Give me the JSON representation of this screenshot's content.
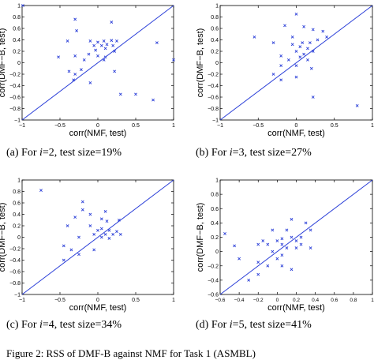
{
  "colors": {
    "line": "#2b3fd8",
    "marker": "#2b3fd8",
    "axis": "#000000"
  },
  "captions": [
    {
      "prefix": "(a)  For ",
      "var": "i",
      "suffix": "=2,  test  size=19%"
    },
    {
      "prefix": "(b)  For ",
      "var": "i",
      "suffix": "=3,  test  size=27%"
    },
    {
      "prefix": "(c)  For ",
      "var": "i",
      "suffix": "=4,  test  size=34%"
    },
    {
      "prefix": "(d)  For ",
      "var": "i",
      "suffix": "=5,  test  size=41%"
    }
  ],
  "figure_caption": "Figure 2: RSS of DMF-B against NMF for Task 1 (ASMBL)",
  "chart_data": [
    {
      "type": "scatter",
      "xlabel": "corr(NMF, test)",
      "ylabel": "corr(DMF−B, test)",
      "xlim": [
        -1,
        1
      ],
      "ylim": [
        -1,
        1
      ],
      "xticks": [
        -1,
        -0.5,
        0,
        0.5,
        1
      ],
      "xtick_labels": [
        "−1",
        "−0.5",
        "0",
        "0.5",
        "1"
      ],
      "yticks": [
        -1,
        -0.8,
        -0.6,
        -0.4,
        -0.2,
        0,
        0.2,
        0.4,
        0.6,
        0.8,
        1
      ],
      "ytick_labels": [
        "−1",
        "−0.8",
        "−0.6",
        "−0.4",
        "−0.2",
        "0",
        "0.2",
        "0.4",
        "0.6",
        "0.8",
        "1"
      ],
      "diagonal": [
        [
          -1,
          -1
        ],
        [
          1,
          1
        ]
      ],
      "points": [
        [
          -0.99,
          1.0
        ],
        [
          -0.3,
          0.76
        ],
        [
          0.18,
          0.71
        ],
        [
          -0.28,
          0.56
        ],
        [
          -0.4,
          0.38
        ],
        [
          -0.1,
          0.38
        ],
        [
          0.0,
          0.36
        ],
        [
          0.08,
          0.38
        ],
        [
          0.18,
          0.39
        ],
        [
          0.25,
          0.38
        ],
        [
          -0.05,
          0.3
        ],
        [
          0.05,
          0.3
        ],
        [
          0.12,
          0.32
        ],
        [
          0.2,
          0.3
        ],
        [
          -0.03,
          0.22
        ],
        [
          0.1,
          0.25
        ],
        [
          0.22,
          0.2
        ],
        [
          -0.12,
          0.15
        ],
        [
          0.0,
          0.12
        ],
        [
          0.1,
          0.1
        ],
        [
          -0.18,
          0.05
        ],
        [
          0.08,
          0.05
        ],
        [
          -0.52,
          0.1
        ],
        [
          -0.3,
          0.12
        ],
        [
          -0.22,
          -0.12
        ],
        [
          -0.38,
          -0.15
        ],
        [
          0.22,
          -0.15
        ],
        [
          -0.32,
          -0.3
        ],
        [
          -0.1,
          -0.35
        ],
        [
          0.78,
          0.35
        ],
        [
          0.5,
          -0.55
        ],
        [
          0.73,
          -0.65
        ],
        [
          0.3,
          -0.55
        ],
        [
          -0.3,
          -0.2
        ],
        [
          1.0,
          0.05
        ]
      ]
    },
    {
      "type": "scatter",
      "xlabel": "corr(NMF, test)",
      "ylabel": "corr(DMF−B, test)",
      "xlim": [
        -1,
        1
      ],
      "ylim": [
        -1,
        1
      ],
      "xticks": [
        -1,
        -0.5,
        0,
        0.5,
        1
      ],
      "xtick_labels": [
        "−1",
        "−0.5",
        "0",
        "0.5",
        "1"
      ],
      "yticks": [
        -1,
        -0.8,
        -0.6,
        -0.4,
        -0.2,
        0,
        0.2,
        0.4,
        0.6,
        0.8,
        1
      ],
      "ytick_labels": [
        "−1",
        "−0.8",
        "−0.6",
        "−0.4",
        "−0.2",
        "0",
        "0.2",
        "0.4",
        "0.6",
        "0.8",
        "1"
      ],
      "diagonal": [
        [
          -1,
          -1
        ],
        [
          1,
          1
        ]
      ],
      "points": [
        [
          0.0,
          0.85
        ],
        [
          -0.15,
          0.65
        ],
        [
          0.1,
          0.63
        ],
        [
          -0.55,
          0.45
        ],
        [
          0.22,
          0.58
        ],
        [
          0.35,
          0.55
        ],
        [
          -0.3,
          0.35
        ],
        [
          -0.05,
          0.32
        ],
        [
          0.08,
          0.35
        ],
        [
          0.18,
          0.35
        ],
        [
          0.28,
          0.4
        ],
        [
          0.05,
          0.28
        ],
        [
          0.15,
          0.25
        ],
        [
          0.0,
          0.2
        ],
        [
          0.1,
          0.15
        ],
        [
          0.22,
          0.2
        ],
        [
          -0.2,
          0.12
        ],
        [
          0.05,
          0.1
        ],
        [
          -0.1,
          0.05
        ],
        [
          0.15,
          0.05
        ],
        [
          -0.2,
          -0.05
        ],
        [
          0.0,
          -0.05
        ],
        [
          0.2,
          -0.1
        ],
        [
          -0.3,
          -0.2
        ],
        [
          -0.2,
          -0.3
        ],
        [
          0.0,
          -0.25
        ],
        [
          0.22,
          -0.6
        ],
        [
          0.8,
          -0.75
        ],
        [
          -0.05,
          0.45
        ],
        [
          0.4,
          0.45
        ]
      ]
    },
    {
      "type": "scatter",
      "xlabel": "corr(NMF, test)",
      "ylabel": "corr(DMF−B, test)",
      "xlim": [
        -1,
        1
      ],
      "ylim": [
        -1,
        1
      ],
      "xticks": [
        -1,
        -0.5,
        0,
        0.5,
        1
      ],
      "xtick_labels": [
        "−1",
        "−0.5",
        "0",
        "0.5",
        "1"
      ],
      "yticks": [
        -1,
        -0.8,
        -0.6,
        -0.4,
        -0.2,
        0,
        0.2,
        0.4,
        0.6,
        0.8,
        1
      ],
      "ytick_labels": [
        "−1",
        "−0.8",
        "−0.6",
        "−0.4",
        "−0.2",
        "0",
        "0.2",
        "0.4",
        "0.6",
        "0.8",
        "1"
      ],
      "diagonal": [
        [
          -1,
          -1
        ],
        [
          1,
          1
        ]
      ],
      "points": [
        [
          -0.75,
          0.82
        ],
        [
          -0.2,
          0.62
        ],
        [
          -0.2,
          0.48
        ],
        [
          -0.1,
          0.4
        ],
        [
          0.05,
          0.32
        ],
        [
          0.12,
          0.28
        ],
        [
          0.28,
          0.3
        ],
        [
          -0.4,
          0.2
        ],
        [
          -0.1,
          0.2
        ],
        [
          0.05,
          0.15
        ],
        [
          0.15,
          0.12
        ],
        [
          0.25,
          0.1
        ],
        [
          -0.05,
          0.05
        ],
        [
          0.1,
          0.05
        ],
        [
          0.2,
          0.05
        ],
        [
          0.3,
          0.05
        ],
        [
          0.05,
          0.0
        ],
        [
          0.15,
          -0.02
        ],
        [
          -0.25,
          0.0
        ],
        [
          -0.45,
          -0.15
        ],
        [
          -0.35,
          -0.22
        ],
        [
          -0.25,
          -0.3
        ],
        [
          -0.05,
          -0.22
        ],
        [
          -0.45,
          -0.4
        ],
        [
          0.1,
          0.45
        ],
        [
          0.0,
          0.12
        ],
        [
          -0.3,
          0.35
        ]
      ]
    },
    {
      "type": "scatter",
      "xlabel": "corr(NMF, test)",
      "ylabel": "corr(DMF−B, test)",
      "xlim": [
        -0.6,
        1
      ],
      "ylim": [
        -0.6,
        1
      ],
      "xticks": [
        -0.6,
        -0.4,
        -0.2,
        0,
        0.2,
        0.4,
        0.6,
        0.8,
        1
      ],
      "xtick_labels": [
        "−0.6",
        "−0.4",
        "−0.2",
        "0",
        "0.2",
        "0.4",
        "0.6",
        "0.8",
        "1"
      ],
      "yticks": [
        -0.6,
        -0.4,
        -0.2,
        0,
        0.2,
        0.4,
        0.6,
        0.8,
        1
      ],
      "ytick_labels": [
        "−0.6",
        "−0.4",
        "−0.2",
        "0",
        "0.2",
        "0.4",
        "0.6",
        "0.8",
        "1"
      ],
      "diagonal": [
        [
          -0.6,
          -0.6
        ],
        [
          1,
          1
        ]
      ],
      "points": [
        [
          -0.55,
          0.25
        ],
        [
          -0.45,
          0.08
        ],
        [
          -0.4,
          -0.1
        ],
        [
          -0.2,
          -0.15
        ],
        [
          -0.15,
          0.15
        ],
        [
          -0.2,
          0.1
        ],
        [
          -0.1,
          0.1
        ],
        [
          0.0,
          0.15
        ],
        [
          0.05,
          0.1
        ],
        [
          0.1,
          0.05
        ],
        [
          0.15,
          0.2
        ],
        [
          0.2,
          0.15
        ],
        [
          0.25,
          0.1
        ],
        [
          -0.05,
          0.0
        ],
        [
          0.05,
          -0.05
        ],
        [
          0.2,
          0.05
        ],
        [
          0.15,
          0.45
        ],
        [
          0.3,
          0.4
        ],
        [
          0.35,
          0.3
        ],
        [
          -0.05,
          0.3
        ],
        [
          0.1,
          0.3
        ],
        [
          0.0,
          -0.1
        ],
        [
          -0.1,
          -0.2
        ],
        [
          0.05,
          -0.2
        ],
        [
          0.15,
          -0.25
        ],
        [
          -0.3,
          -0.4
        ],
        [
          -0.2,
          -0.32
        ],
        [
          0.35,
          0.05
        ],
        [
          0.25,
          0.2
        ],
        [
          0.05,
          0.18
        ]
      ]
    }
  ]
}
